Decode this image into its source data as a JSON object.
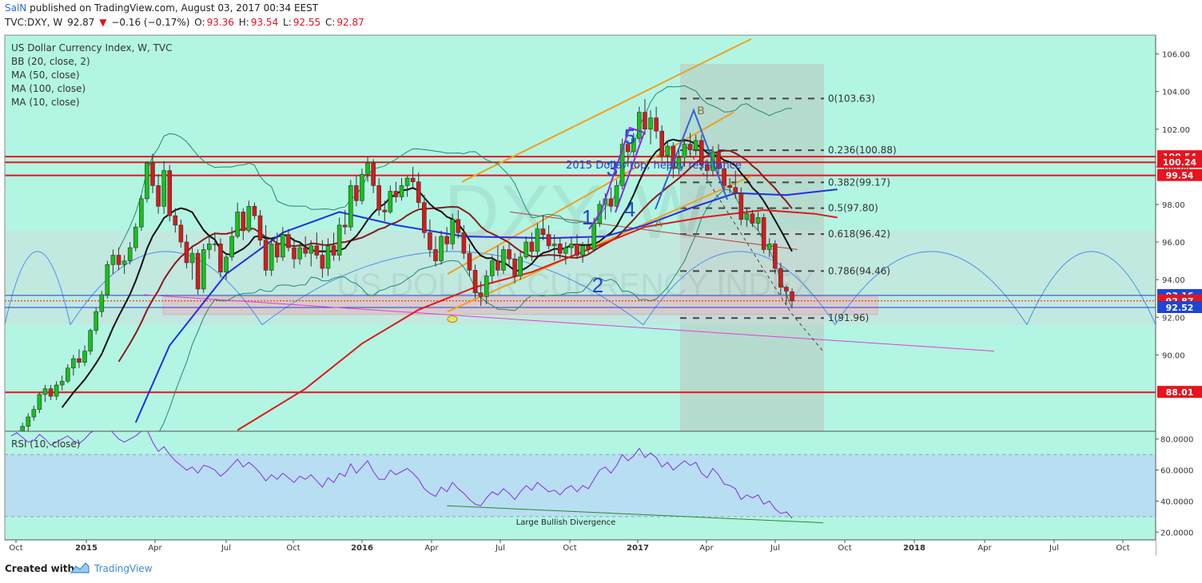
{
  "header": {
    "user": "SalN",
    "published": "published on TradingView.com, August 03, 2017 00:34 EEST",
    "symbol_line": "TVC:DXY, W",
    "last": "92.87",
    "change": "−0.16 (−0.17%)",
    "open_label": "O:",
    "open": "93.36",
    "high_label": "H:",
    "high": "93.54",
    "low_label": "L:",
    "low": "92.55",
    "close_label": "C:",
    "close": "92.87"
  },
  "legend": [
    "US Dollar Currency Index, W, TVC",
    "BB (20, close, 2)",
    "MA (50, close)",
    "MA (100, close)",
    "MA (10, close)"
  ],
  "watermark": {
    "big": "DXY, W",
    "sub": "US DOLLAR CURRENCY INDEX"
  },
  "annotations": {
    "resistance": "2015 Dollar top, heavy resistance",
    "divergence": "Large Bullish Divergence",
    "waves": [
      "1",
      "2",
      "3",
      "4",
      "5",
      "A",
      "B"
    ]
  },
  "fib_levels": [
    {
      "label": "0(103.63)",
      "value": 103.63
    },
    {
      "label": "0.236(100.88)",
      "value": 100.88
    },
    {
      "label": "0.382(99.17)",
      "value": 99.17
    },
    {
      "label": "0.5(97.80)",
      "value": 97.8
    },
    {
      "label": "0.618(96.42)",
      "value": 96.42
    },
    {
      "label": "0.786(94.46)",
      "value": 94.46
    },
    {
      "label": "1(91.96)",
      "value": 91.96
    }
  ],
  "price_tags": [
    {
      "text": "100.54",
      "value": 100.54,
      "color": "#e8131c"
    },
    {
      "text": "100.24",
      "value": 100.24,
      "color": "#e8131c"
    },
    {
      "text": "99.54",
      "value": 99.54,
      "color": "#e8131c"
    },
    {
      "text": "93.16",
      "value": 93.16,
      "color": "#1f45d3"
    },
    {
      "text": "92.87",
      "value": 92.87,
      "color": "#e8131c"
    },
    {
      "text": "92.52",
      "value": 92.52,
      "color": "#1f45d3"
    },
    {
      "text": "88.01",
      "value": 88.01,
      "color": "#e8131c"
    }
  ],
  "chart_data": {
    "type": "candlestick",
    "title": "US Dollar Currency Index, W, TVC",
    "y_ticks": [
      "106.00",
      "104.00",
      "102.00",
      "100.00",
      "98.00",
      "96.00",
      "94.00",
      "92.00",
      "90.00"
    ],
    "ylim": [
      85,
      107
    ],
    "x_ticks": [
      "Oct",
      "2015",
      "Apr",
      "Jul",
      "Oct",
      "2016",
      "Apr",
      "Jul",
      "Oct",
      "2017",
      "Apr",
      "Jul",
      "Oct",
      "2018",
      "Apr",
      "Jul",
      "Oct"
    ],
    "x_bold": [
      "2015",
      "2016",
      "2017",
      "2018"
    ],
    "ohlc_weekly": [
      [
        85.2,
        85.6,
        84.8,
        85.4
      ],
      [
        85.4,
        85.9,
        85.1,
        85.8
      ],
      [
        85.8,
        86.4,
        85.5,
        86.2
      ],
      [
        86.2,
        86.9,
        85.9,
        86.7
      ],
      [
        86.7,
        87.3,
        86.5,
        87.1
      ],
      [
        87.1,
        88.0,
        86.9,
        87.9
      ],
      [
        87.9,
        88.4,
        87.5,
        88.2
      ],
      [
        88.2,
        88.4,
        87.6,
        87.8
      ],
      [
        87.8,
        88.6,
        87.6,
        88.4
      ],
      [
        88.4,
        88.9,
        88.1,
        88.6
      ],
      [
        88.6,
        89.5,
        88.5,
        89.3
      ],
      [
        89.3,
        90.0,
        88.9,
        89.8
      ],
      [
        89.8,
        90.3,
        89.3,
        89.6
      ],
      [
        89.6,
        90.5,
        89.4,
        90.2
      ],
      [
        90.2,
        91.4,
        90.0,
        91.3
      ],
      [
        91.3,
        92.5,
        91.1,
        92.3
      ],
      [
        92.3,
        93.4,
        92.0,
        93.2
      ],
      [
        93.2,
        95.0,
        93.0,
        94.8
      ],
      [
        94.8,
        95.6,
        94.3,
        95.3
      ],
      [
        95.3,
        95.7,
        94.5,
        94.8
      ],
      [
        94.8,
        95.3,
        94.3,
        95.0
      ],
      [
        95.0,
        96.0,
        94.8,
        95.7
      ],
      [
        95.7,
        97.0,
        95.5,
        96.8
      ],
      [
        96.8,
        98.5,
        96.6,
        98.3
      ],
      [
        98.3,
        100.3,
        98.1,
        100.2
      ],
      [
        100.2,
        100.7,
        98.6,
        99.0
      ],
      [
        99.0,
        99.6,
        97.5,
        97.9
      ],
      [
        97.9,
        100.3,
        97.5,
        99.8
      ],
      [
        99.8,
        100.1,
        97.1,
        97.4
      ],
      [
        97.4,
        97.8,
        96.5,
        96.9
      ],
      [
        96.9,
        97.2,
        95.7,
        96.0
      ],
      [
        96.0,
        96.4,
        94.6,
        94.9
      ],
      [
        94.9,
        95.8,
        94.0,
        95.4
      ],
      [
        95.4,
        95.6,
        93.2,
        93.5
      ],
      [
        93.5,
        95.9,
        93.3,
        95.6
      ],
      [
        95.6,
        96.4,
        95.1,
        95.9
      ],
      [
        95.9,
        96.5,
        95.5,
        95.9
      ],
      [
        95.9,
        96.2,
        94.1,
        94.4
      ],
      [
        94.4,
        95.4,
        94.0,
        95.2
      ],
      [
        95.2,
        96.8,
        95.0,
        96.3
      ],
      [
        96.3,
        98.1,
        96.2,
        97.6
      ],
      [
        97.6,
        97.8,
        96.1,
        96.6
      ],
      [
        96.6,
        98.2,
        96.5,
        97.9
      ],
      [
        97.9,
        98.1,
        97.2,
        97.4
      ],
      [
        97.4,
        97.7,
        95.8,
        96.1
      ],
      [
        96.1,
        96.9,
        94.2,
        94.5
      ],
      [
        94.5,
        96.2,
        94.2,
        95.9
      ],
      [
        95.9,
        96.5,
        94.9,
        95.2
      ],
      [
        95.2,
        96.8,
        95.0,
        96.4
      ],
      [
        96.4,
        96.7,
        95.5,
        95.7
      ],
      [
        95.7,
        96.2,
        94.6,
        95.1
      ],
      [
        95.1,
        96.0,
        94.8,
        95.7
      ],
      [
        95.7,
        96.3,
        95.2,
        95.4
      ],
      [
        95.4,
        96.1,
        94.7,
        95.8
      ],
      [
        95.8,
        96.5,
        95.1,
        95.3
      ],
      [
        95.3,
        96.1,
        94.1,
        94.6
      ],
      [
        94.6,
        96.2,
        94.2,
        95.8
      ],
      [
        95.8,
        96.5,
        95.0,
        95.3
      ],
      [
        95.3,
        97.3,
        95.0,
        96.9
      ],
      [
        96.9,
        97.7,
        96.4,
        96.8
      ],
      [
        96.8,
        99.3,
        96.6,
        99.0
      ],
      [
        99.0,
        99.5,
        97.9,
        98.2
      ],
      [
        98.2,
        99.9,
        98.0,
        99.6
      ],
      [
        99.6,
        100.5,
        99.2,
        100.2
      ],
      [
        100.2,
        100.4,
        98.6,
        99.0
      ],
      [
        99.0,
        99.4,
        97.4,
        97.7
      ],
      [
        97.7,
        98.2,
        97.1,
        97.6
      ],
      [
        97.6,
        99.0,
        97.5,
        98.7
      ],
      [
        98.7,
        99.2,
        98.1,
        98.4
      ],
      [
        98.4,
        99.4,
        98.2,
        99.0
      ],
      [
        99.0,
        99.5,
        98.4,
        99.4
      ],
      [
        99.4,
        100.0,
        98.8,
        99.2
      ],
      [
        99.2,
        99.7,
        97.8,
        98.1
      ],
      [
        98.1,
        98.5,
        96.2,
        96.5
      ],
      [
        96.5,
        97.2,
        95.2,
        95.6
      ],
      [
        95.6,
        96.3,
        94.7,
        95.0
      ],
      [
        95.0,
        96.6,
        94.8,
        96.3
      ],
      [
        96.3,
        96.8,
        95.5,
        95.9
      ],
      [
        95.9,
        97.5,
        95.6,
        97.2
      ],
      [
        97.2,
        97.7,
        96.2,
        96.5
      ],
      [
        96.5,
        96.9,
        95.1,
        95.4
      ],
      [
        95.4,
        95.9,
        94.2,
        94.5
      ],
      [
        94.5,
        94.8,
        93.0,
        93.3
      ],
      [
        93.3,
        93.9,
        92.6,
        93.1
      ],
      [
        93.1,
        94.5,
        92.7,
        94.2
      ],
      [
        94.2,
        95.3,
        93.8,
        95.0
      ],
      [
        95.0,
        95.8,
        94.2,
        94.5
      ],
      [
        94.5,
        95.8,
        94.3,
        95.6
      ],
      [
        95.6,
        96.0,
        94.7,
        95.1
      ],
      [
        95.1,
        95.4,
        93.8,
        94.2
      ],
      [
        94.2,
        95.5,
        94.0,
        95.2
      ],
      [
        95.2,
        96.3,
        95.1,
        96.0
      ],
      [
        96.0,
        96.5,
        95.0,
        95.5
      ],
      [
        95.5,
        97.0,
        95.2,
        96.7
      ],
      [
        96.7,
        97.4,
        96.1,
        96.4
      ],
      [
        96.4,
        96.9,
        95.6,
        95.8
      ],
      [
        95.8,
        96.4,
        95.0,
        95.9
      ],
      [
        95.9,
        96.2,
        95.1,
        95.4
      ],
      [
        95.4,
        96.0,
        94.8,
        95.7
      ],
      [
        95.7,
        96.3,
        95.2,
        95.9
      ],
      [
        95.9,
        96.4,
        95.1,
        95.3
      ],
      [
        95.3,
        96.0,
        94.9,
        95.8
      ],
      [
        95.8,
        96.2,
        95.4,
        95.6
      ],
      [
        95.6,
        97.3,
        95.5,
        97.0
      ],
      [
        97.0,
        98.2,
        96.8,
        98.0
      ],
      [
        98.0,
        98.6,
        97.2,
        98.3
      ],
      [
        98.3,
        98.9,
        97.6,
        97.9
      ],
      [
        97.9,
        99.3,
        97.7,
        99.0
      ],
      [
        99.0,
        101.5,
        98.8,
        101.2
      ],
      [
        101.2,
        101.4,
        100.0,
        100.8
      ],
      [
        100.8,
        101.8,
        100.5,
        101.5
      ],
      [
        101.5,
        103.2,
        101.3,
        102.9
      ],
      [
        102.9,
        103.6,
        101.7,
        102.0
      ],
      [
        102.0,
        103.0,
        101.2,
        102.6
      ],
      [
        102.6,
        103.2,
        101.5,
        101.9
      ],
      [
        101.9,
        102.2,
        100.3,
        100.6
      ],
      [
        100.6,
        101.4,
        99.8,
        101.1
      ],
      [
        101.1,
        101.3,
        99.4,
        99.9
      ],
      [
        99.9,
        101.0,
        99.6,
        100.5
      ],
      [
        100.5,
        101.4,
        100.0,
        101.2
      ],
      [
        101.2,
        101.8,
        100.5,
        100.9
      ],
      [
        100.9,
        101.7,
        100.6,
        101.4
      ],
      [
        101.4,
        101.7,
        99.8,
        100.1
      ],
      [
        100.1,
        100.4,
        99.4,
        99.8
      ],
      [
        99.8,
        101.1,
        99.5,
        100.8
      ],
      [
        100.8,
        101.2,
        99.6,
        99.9
      ],
      [
        99.9,
        100.4,
        98.7,
        99.0
      ],
      [
        99.0,
        99.4,
        98.6,
        98.9
      ],
      [
        98.9,
        99.8,
        98.3,
        98.6
      ],
      [
        98.6,
        98.9,
        96.9,
        97.2
      ],
      [
        97.2,
        97.8,
        96.8,
        97.5
      ],
      [
        97.5,
        97.7,
        96.8,
        97.0
      ],
      [
        97.0,
        97.6,
        96.6,
        97.3
      ],
      [
        97.3,
        97.5,
        95.4,
        95.6
      ],
      [
        95.6,
        96.2,
        95.2,
        95.9
      ],
      [
        95.9,
        96.1,
        94.3,
        94.6
      ],
      [
        94.6,
        94.9,
        93.2,
        93.6
      ],
      [
        93.6,
        93.7,
        92.7,
        93.4
      ],
      [
        93.36,
        93.54,
        92.55,
        92.87
      ]
    ],
    "rsi": {
      "label": "RSI (10, close)",
      "y_ticks": [
        "80.0000",
        "60.0000",
        "40.0000",
        "20.0000"
      ],
      "ylim": [
        15,
        85
      ],
      "band": [
        30,
        70
      ],
      "values": [
        82,
        84,
        81,
        78,
        79,
        83,
        80,
        76,
        78,
        80,
        82,
        79,
        77,
        80,
        84,
        86,
        87,
        88,
        84,
        80,
        78,
        80,
        82,
        85,
        86,
        78,
        72,
        75,
        70,
        66,
        63,
        60,
        62,
        58,
        63,
        62,
        60,
        56,
        59,
        63,
        67,
        62,
        65,
        62,
        58,
        53,
        57,
        54,
        58,
        55,
        52,
        56,
        54,
        57,
        53,
        49,
        55,
        52,
        58,
        56,
        64,
        58,
        62,
        66,
        59,
        54,
        54,
        60,
        57,
        59,
        61,
        58,
        54,
        48,
        45,
        43,
        49,
        46,
        52,
        48,
        45,
        41,
        38,
        37,
        42,
        46,
        44,
        48,
        45,
        41,
        46,
        50,
        47,
        52,
        49,
        46,
        47,
        44,
        48,
        50,
        46,
        50,
        48,
        54,
        60,
        62,
        58,
        63,
        70,
        66,
        69,
        74,
        68,
        71,
        68,
        62,
        65,
        60,
        63,
        66,
        63,
        65,
        58,
        55,
        61,
        57,
        51,
        50,
        48,
        41,
        44,
        42,
        44,
        38,
        40,
        35,
        32,
        33,
        29
      ]
    },
    "divergence_label": "Large Bullish Divergence"
  },
  "footer": {
    "created": "Created with",
    "brand": "TradingView"
  }
}
